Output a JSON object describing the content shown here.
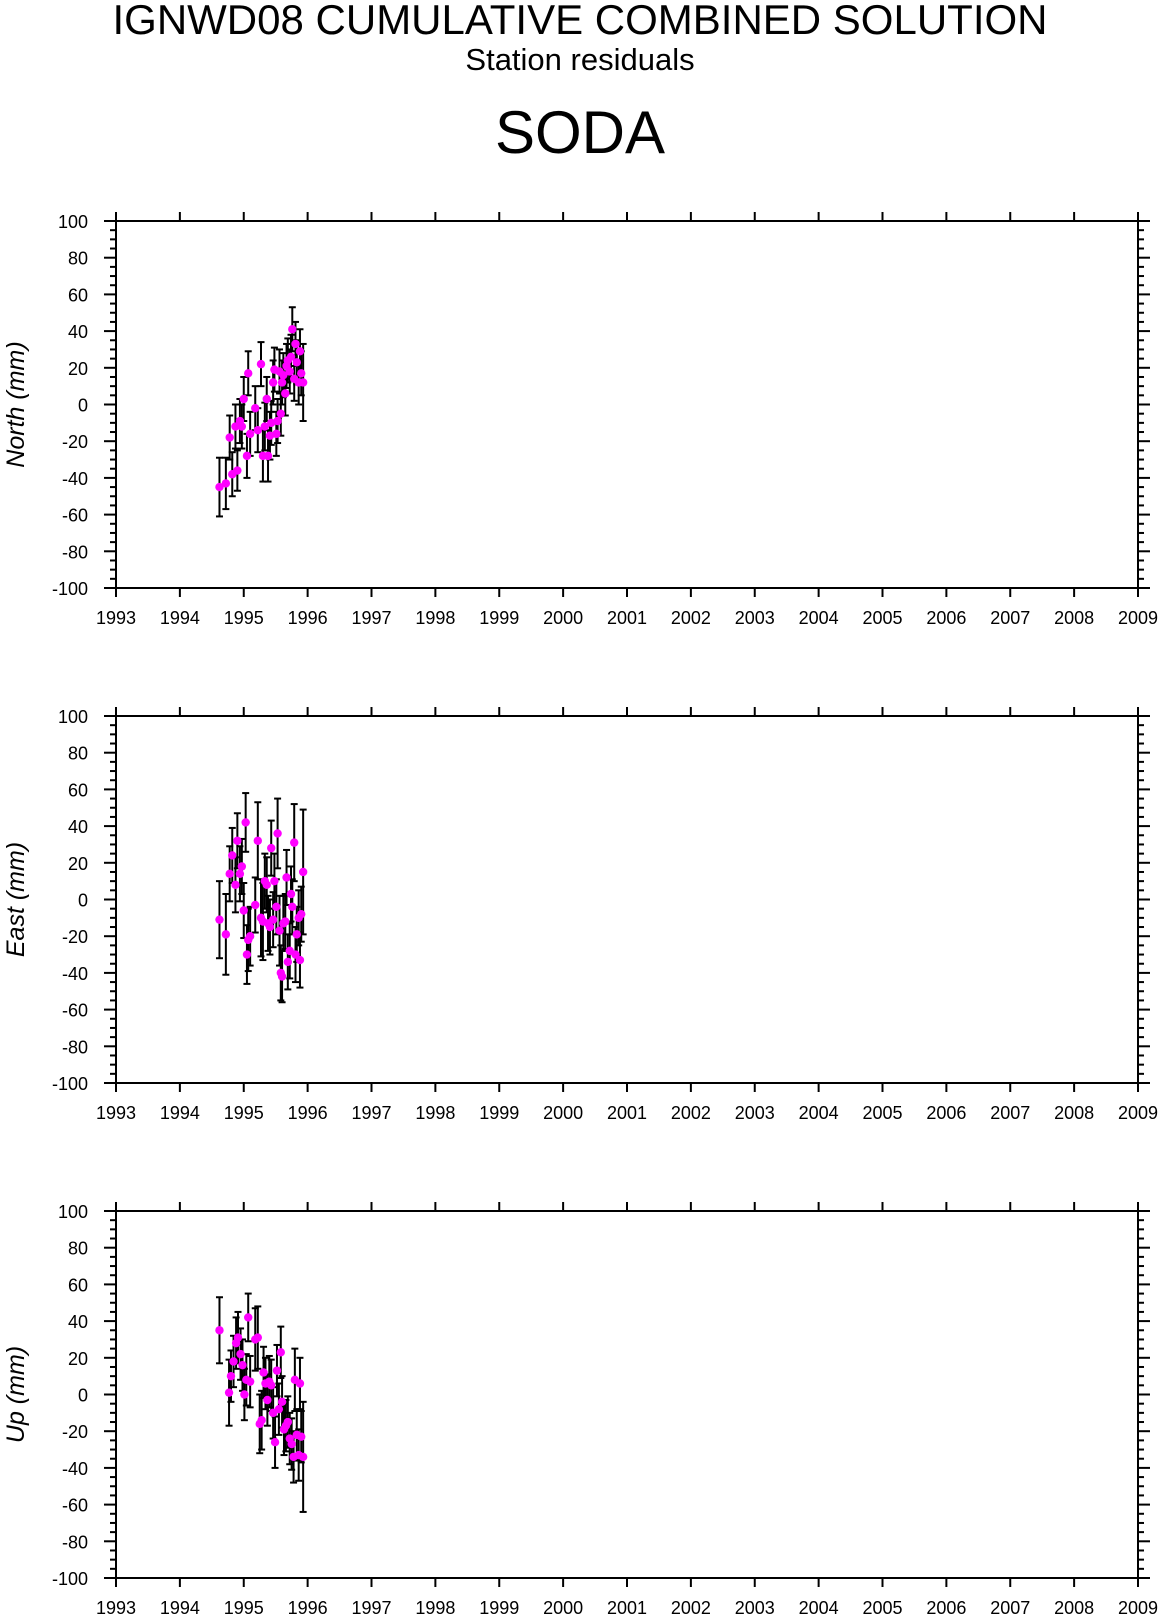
{
  "title": "IGNWD08 CUMULATIVE COMBINED SOLUTION",
  "subtitle": "Station residuals",
  "station": "SODA",
  "colors": {
    "point": "#ff00ff",
    "errorbar": "#000000",
    "frame": "#000000"
  },
  "chart_data": [
    {
      "type": "scatter",
      "ylabel": "North (mm)",
      "xlim": [
        1993,
        2009
      ],
      "ylim": [
        -100,
        100
      ],
      "x_ticks": [
        "1993",
        "1994",
        "1995",
        "1996",
        "1997",
        "1998",
        "1999",
        "2000",
        "2001",
        "2002",
        "2003",
        "2004",
        "2005",
        "2006",
        "2007",
        "2008",
        "2009"
      ],
      "y_ticks": [
        "100",
        "80",
        "60",
        "40",
        "20",
        "0",
        "-20",
        "-40",
        "-60",
        "-80",
        "-100"
      ],
      "series": [
        {
          "x": [
            1994.62,
            1994.72,
            1994.78,
            1994.82,
            1994.87,
            1994.9,
            1994.94,
            1994.97,
            1995.0,
            1995.05,
            1995.07,
            1995.1,
            1995.18,
            1995.22,
            1995.27,
            1995.3,
            1995.33,
            1995.36,
            1995.38,
            1995.41,
            1995.43,
            1995.46,
            1995.48,
            1995.51,
            1995.53,
            1995.56,
            1995.58,
            1995.6,
            1995.62,
            1995.65,
            1995.67,
            1995.69,
            1995.72,
            1995.74,
            1995.76,
            1995.79,
            1995.81,
            1995.83,
            1995.86,
            1995.88,
            1995.9,
            1995.93
          ],
          "y": [
            -45,
            -43,
            -18,
            -38,
            -12,
            -36,
            -9,
            -12,
            3,
            -28,
            17,
            -16,
            -2,
            -14,
            22,
            -28,
            -12,
            3,
            -28,
            -17,
            -10,
            12,
            19,
            -16,
            -9,
            18,
            -5,
            12,
            16,
            6,
            21,
            24,
            18,
            26,
            41,
            14,
            33,
            23,
            12,
            29,
            17,
            12
          ],
          "err": [
            16,
            14,
            12,
            12,
            12,
            11,
            12,
            12,
            12,
            12,
            12,
            12,
            12,
            12,
            12,
            14,
            13,
            12,
            14,
            13,
            12,
            12,
            12,
            12,
            12,
            12,
            12,
            12,
            12,
            12,
            12,
            12,
            12,
            12,
            12,
            12,
            12,
            12,
            12,
            12,
            12,
            21
          ]
        }
      ]
    },
    {
      "type": "scatter",
      "ylabel": "East (mm)",
      "xlim": [
        1993,
        2009
      ],
      "ylim": [
        -100,
        100
      ],
      "x_ticks": [
        "1993",
        "1994",
        "1995",
        "1996",
        "1997",
        "1998",
        "1999",
        "2000",
        "2001",
        "2002",
        "2003",
        "2004",
        "2005",
        "2006",
        "2007",
        "2008",
        "2009"
      ],
      "y_ticks": [
        "100",
        "80",
        "60",
        "40",
        "20",
        "0",
        "-20",
        "-40",
        "-60",
        "-80",
        "-100"
      ],
      "series": [
        {
          "x": [
            1994.62,
            1994.72,
            1994.78,
            1994.82,
            1994.87,
            1994.9,
            1994.94,
            1994.97,
            1995.0,
            1995.03,
            1995.05,
            1995.07,
            1995.1,
            1995.18,
            1995.22,
            1995.27,
            1995.3,
            1995.33,
            1995.36,
            1995.38,
            1995.41,
            1995.43,
            1995.46,
            1995.48,
            1995.51,
            1995.53,
            1995.56,
            1995.58,
            1995.6,
            1995.62,
            1995.65,
            1995.67,
            1995.69,
            1995.72,
            1995.74,
            1995.76,
            1995.79,
            1995.81,
            1995.83,
            1995.86,
            1995.88,
            1995.9,
            1995.93
          ],
          "y": [
            -11,
            -19,
            14,
            24,
            8,
            32,
            14,
            18,
            -6,
            42,
            -30,
            -22,
            -20,
            -3,
            32,
            -10,
            -12,
            10,
            8,
            -13,
            -15,
            28,
            -11,
            10,
            -4,
            36,
            -17,
            -40,
            -42,
            -13,
            -12,
            12,
            -34,
            -28,
            3,
            -4,
            31,
            -30,
            -19,
            -10,
            -33,
            -8,
            15
          ],
          "err": [
            21,
            22,
            15,
            15,
            15,
            15,
            15,
            15,
            15,
            16,
            16,
            17,
            16,
            15,
            21,
            21,
            21,
            15,
            15,
            15,
            15,
            15,
            15,
            15,
            15,
            19,
            19,
            15,
            14,
            15,
            15,
            15,
            15,
            15,
            15,
            15,
            21,
            15,
            15,
            15,
            15,
            15,
            34
          ]
        }
      ]
    },
    {
      "type": "scatter",
      "ylabel": "Up (mm)",
      "xlim": [
        1993,
        2009
      ],
      "ylim": [
        -100,
        100
      ],
      "x_ticks": [
        "1993",
        "1994",
        "1995",
        "1996",
        "1997",
        "1998",
        "1999",
        "2000",
        "2001",
        "2002",
        "2003",
        "2004",
        "2005",
        "2006",
        "2007",
        "2008",
        "2009"
      ],
      "y_ticks": [
        "100",
        "80",
        "60",
        "40",
        "20",
        "0",
        "-20",
        "-40",
        "-60",
        "-80",
        "-100"
      ],
      "series": [
        {
          "x": [
            1994.62,
            1994.77,
            1994.8,
            1994.84,
            1994.88,
            1994.91,
            1994.95,
            1994.98,
            1995.01,
            1995.04,
            1995.07,
            1995.1,
            1995.18,
            1995.22,
            1995.25,
            1995.28,
            1995.31,
            1995.34,
            1995.37,
            1995.4,
            1995.43,
            1995.46,
            1995.49,
            1995.52,
            1995.55,
            1995.58,
            1995.6,
            1995.63,
            1995.66,
            1995.69,
            1995.72,
            1995.75,
            1995.78,
            1995.8,
            1995.83,
            1995.86,
            1995.88,
            1995.9,
            1995.93
          ],
          "y": [
            35,
            1,
            10,
            18,
            28,
            31,
            22,
            16,
            0,
            8,
            42,
            7,
            30,
            31,
            -16,
            -14,
            12,
            6,
            -3,
            7,
            5,
            -10,
            -26,
            13,
            -8,
            23,
            -4,
            -19,
            -17,
            -15,
            -24,
            -27,
            -34,
            8,
            -22,
            -33,
            6,
            -23,
            -34
          ],
          "err": [
            18,
            18,
            14,
            14,
            14,
            14,
            14,
            14,
            14,
            14,
            13,
            14,
            17,
            17,
            16,
            16,
            14,
            14,
            14,
            14,
            14,
            14,
            14,
            14,
            14,
            14,
            14,
            14,
            14,
            14,
            14,
            14,
            14,
            17,
            14,
            14,
            14,
            14,
            30
          ]
        }
      ]
    }
  ]
}
